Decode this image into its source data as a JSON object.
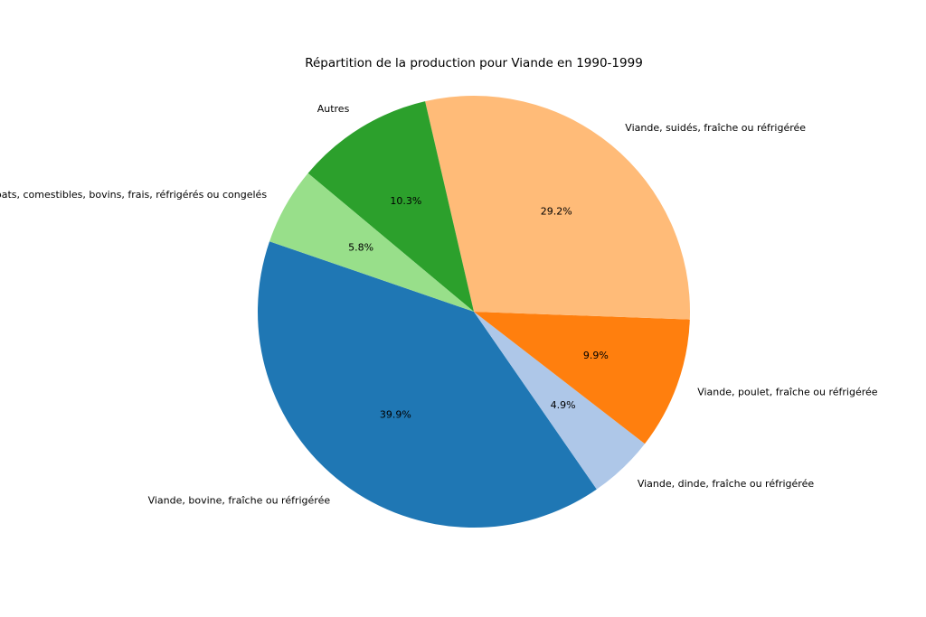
{
  "chart_data": {
    "type": "pie",
    "title": "Répartition de la production pour Viande en 1990-1999",
    "categories": [
      "Viande, bovine, fraîche ou réfrigérée",
      "Viande, dinde, fraîche ou réfrigérée",
      "Viande, poulet, fraîche ou réfrigérée",
      "Viande, suidés, fraîche ou réfrigérée",
      "Autres",
      "Abats, comestibles, bovins, frais, réfrigérés ou congelés"
    ],
    "values": [
      39.9,
      4.9,
      9.9,
      29.2,
      10.3,
      5.8
    ],
    "value_labels": [
      "39.9%",
      "4.9%",
      "9.9%",
      "29.2%",
      "10.3%",
      "5.8%"
    ],
    "colors": [
      "#1f77b4",
      "#aec7e8",
      "#ff7f0e",
      "#ffbb78",
      "#2ca02c",
      "#98df8a"
    ]
  }
}
